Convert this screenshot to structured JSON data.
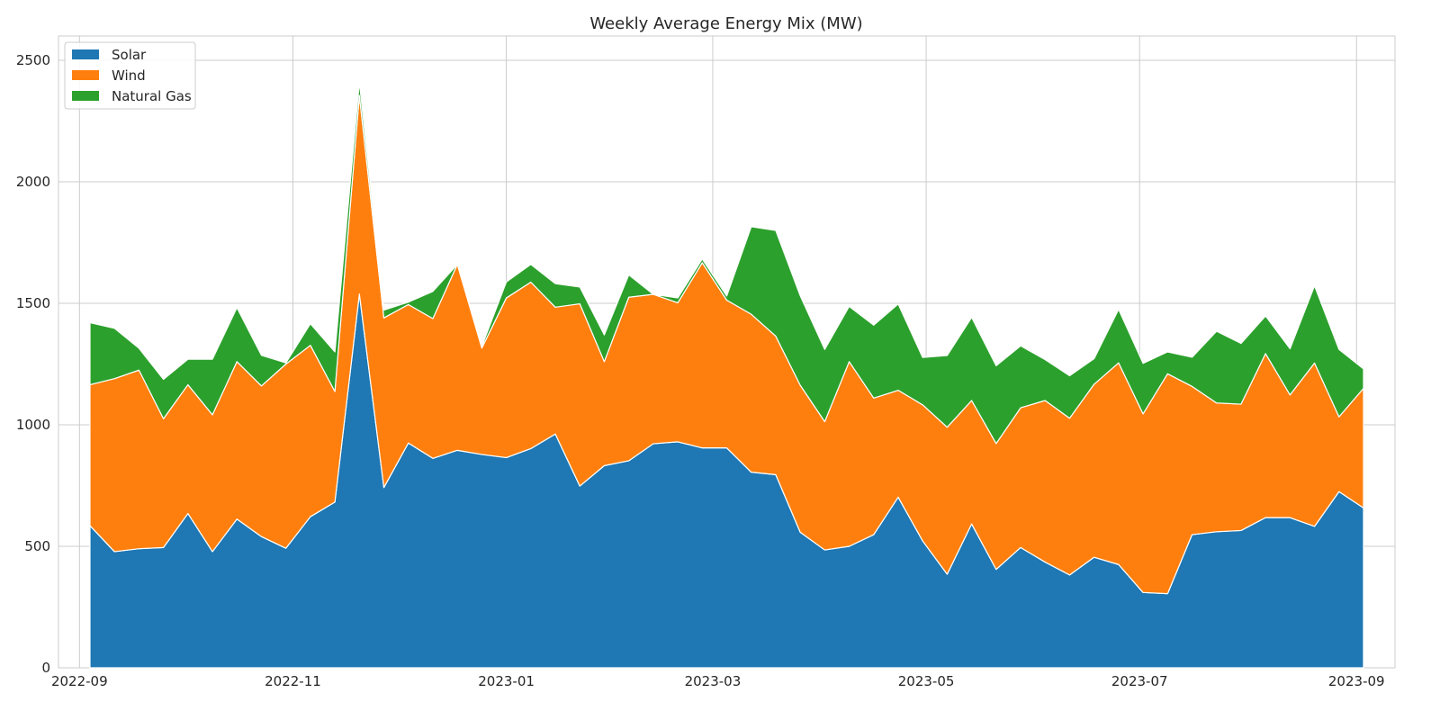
{
  "chart_data": {
    "type": "area",
    "stacked": true,
    "title": "Weekly Average Energy Mix (MW)",
    "xlabel": "",
    "ylabel": "",
    "ylim": [
      0,
      2600
    ],
    "xlim": [
      "2022-08-26",
      "2023-09-12"
    ],
    "x_ticks": [
      {
        "date": "2022-09-01",
        "label": "2022-09"
      },
      {
        "date": "2022-11-01",
        "label": "2022-11"
      },
      {
        "date": "2023-01-01",
        "label": "2023-01"
      },
      {
        "date": "2023-03-01",
        "label": "2023-03"
      },
      {
        "date": "2023-05-01",
        "label": "2023-05"
      },
      {
        "date": "2023-07-01",
        "label": "2023-07"
      },
      {
        "date": "2023-09-01",
        "label": "2023-09"
      }
    ],
    "y_ticks": [
      0,
      500,
      1000,
      1500,
      2000,
      2500
    ],
    "grid": true,
    "legend_position": "top-left",
    "x": [
      "2022-09-04",
      "2022-09-11",
      "2022-09-18",
      "2022-09-25",
      "2022-10-02",
      "2022-10-09",
      "2022-10-16",
      "2022-10-23",
      "2022-10-30",
      "2022-11-06",
      "2022-11-13",
      "2022-11-20",
      "2022-11-27",
      "2022-12-04",
      "2022-12-11",
      "2022-12-18",
      "2022-12-25",
      "2023-01-01",
      "2023-01-08",
      "2023-01-15",
      "2023-01-22",
      "2023-01-29",
      "2023-02-05",
      "2023-02-12",
      "2023-02-19",
      "2023-02-26",
      "2023-03-05",
      "2023-03-12",
      "2023-03-19",
      "2023-03-26",
      "2023-04-02",
      "2023-04-09",
      "2023-04-16",
      "2023-04-23",
      "2023-04-30",
      "2023-05-07",
      "2023-05-14",
      "2023-05-21",
      "2023-05-28",
      "2023-06-04",
      "2023-06-11",
      "2023-06-18",
      "2023-06-25",
      "2023-07-02",
      "2023-07-09",
      "2023-07-16",
      "2023-07-23",
      "2023-07-30",
      "2023-08-06",
      "2023-08-13",
      "2023-08-20",
      "2023-08-27",
      "2023-09-03"
    ],
    "series": [
      {
        "name": "Solar",
        "color": "#1f77b4",
        "values": [
          585,
          478,
          490,
          495,
          635,
          478,
          612,
          540,
          492,
          622,
          682,
          1538,
          742,
          925,
          862,
          895,
          878,
          865,
          902,
          962,
          748,
          832,
          852,
          922,
          930,
          905,
          905,
          805,
          795,
          558,
          485,
          500,
          548,
          702,
          522,
          385,
          592,
          405,
          495,
          435,
          382,
          455,
          425,
          310,
          305,
          548,
          560,
          565,
          618,
          618,
          582,
          725,
          658
        ]
      },
      {
        "name": "Wind",
        "color": "#ff7f0e",
        "values": [
          580,
          712,
          735,
          530,
          530,
          563,
          648,
          620,
          758,
          705,
          455,
          817,
          698,
          570,
          575,
          765,
          438,
          657,
          685,
          522,
          750,
          428,
          673,
          615,
          572,
          762,
          608,
          650,
          570,
          605,
          528,
          760,
          562,
          440,
          560,
          605,
          508,
          518,
          575,
          665,
          645,
          712,
          830,
          735,
          905,
          610,
          530,
          520,
          675,
          505,
          672,
          308,
          492
        ]
      },
      {
        "name": "Natural Gas",
        "color": "#2ca02c",
        "values": [
          255,
          207,
          90,
          162,
          105,
          229,
          222,
          126,
          5,
          89,
          163,
          55,
          32,
          10,
          112,
          0,
          7,
          66,
          73,
          97,
          69,
          110,
          92,
          0,
          20,
          15,
          17,
          360,
          435,
          368,
          297,
          227,
          300,
          355,
          195,
          295,
          342,
          320,
          255,
          168,
          175,
          105,
          220,
          208,
          90,
          120,
          295,
          250,
          155,
          190,
          318,
          277,
          80
        ]
      }
    ]
  }
}
